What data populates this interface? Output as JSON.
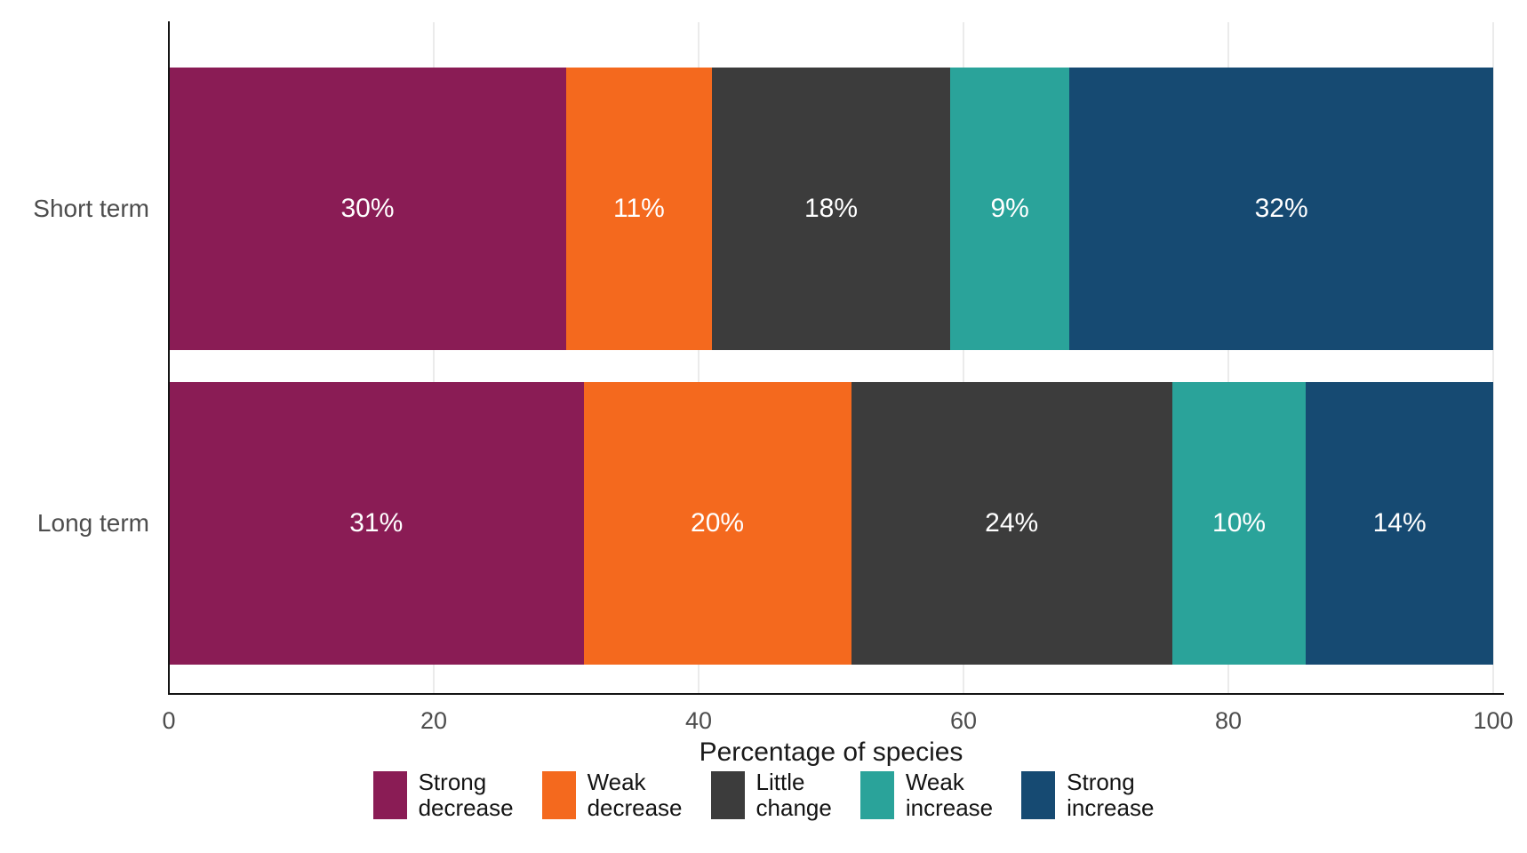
{
  "chart_data": {
    "type": "bar",
    "orientation": "horizontal",
    "stacked": true,
    "stack_unit": "percent",
    "title": "",
    "categories": [
      "Short term",
      "Long term"
    ],
    "series": [
      {
        "name": "Strong decrease",
        "legend_lines": [
          "Strong",
          "decrease"
        ],
        "color": "#8A1C55",
        "values": [
          30,
          31
        ]
      },
      {
        "name": "Weak decrease",
        "legend_lines": [
          "Weak",
          "decrease"
        ],
        "color": "#F4691E",
        "values": [
          11,
          20
        ]
      },
      {
        "name": "Little change",
        "legend_lines": [
          "Little",
          "change"
        ],
        "color": "#3C3C3C",
        "values": [
          18,
          24
        ]
      },
      {
        "name": "Weak increase",
        "legend_lines": [
          "Weak",
          "increase"
        ],
        "color": "#2AA39A",
        "values": [
          9,
          10
        ]
      },
      {
        "name": "Strong increase",
        "legend_lines": [
          "Strong",
          "increase"
        ],
        "color": "#164A72",
        "values": [
          32,
          14
        ]
      }
    ],
    "bar_labels": [
      [
        "30%",
        "11%",
        "18%",
        "9%",
        "32%"
      ],
      [
        "31%",
        "20%",
        "24%",
        "10%",
        "14%"
      ]
    ],
    "xlabel": "Percentage of species",
    "x_ticks": [
      0,
      20,
      40,
      60,
      80,
      100
    ],
    "xlim": [
      0,
      100
    ],
    "grid": "vertical-light",
    "legend_position": "bottom"
  },
  "colors": {
    "background": "#FFFFFF",
    "axis_line": "#141414",
    "grid_line": "#EBEBEB",
    "tick_label": "#4D4D4D",
    "category_label": "#4D4D4D",
    "axis_title": "#1A1A1A",
    "bar_label": "#FFFFFF"
  }
}
